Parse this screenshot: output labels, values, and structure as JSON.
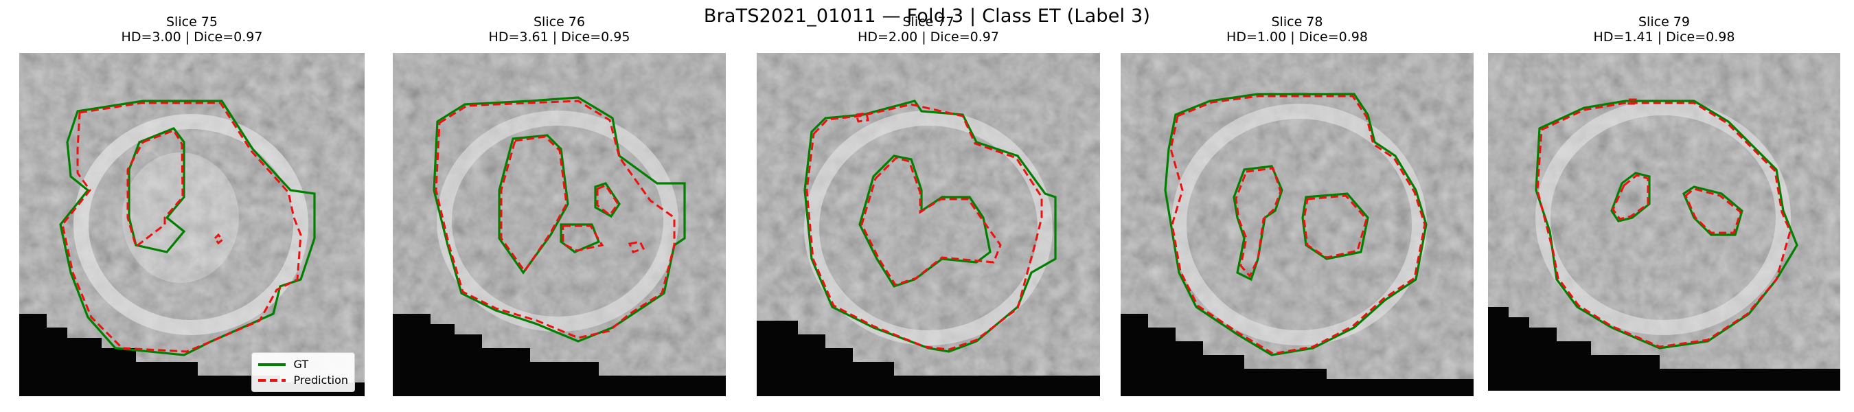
{
  "figure": {
    "suptitle": "BraTS2021_01011 — Fold 3 | Class ET (Label 3)"
  },
  "panels": [
    {
      "slice_label": "Slice 75",
      "metrics_label": "HD=3.00 | Dice=0.97",
      "hd": 3.0,
      "dice": 0.97
    },
    {
      "slice_label": "Slice 76",
      "metrics_label": "HD=3.61 | Dice=0.95",
      "hd": 3.61,
      "dice": 0.95
    },
    {
      "slice_label": "Slice 77",
      "metrics_label": "HD=2.00 | Dice=0.97",
      "hd": 2.0,
      "dice": 0.97
    },
    {
      "slice_label": "Slice 78",
      "metrics_label": "HD=1.00 | Dice=0.98",
      "hd": 1.0,
      "dice": 0.98
    },
    {
      "slice_label": "Slice 79",
      "metrics_label": "HD=1.41 | Dice=0.98",
      "hd": 1.41,
      "dice": 0.98
    }
  ],
  "legend": {
    "gt_label": "GT",
    "pred_label": "Prediction"
  },
  "colors": {
    "gt": "#008000",
    "prediction": "#ee1111",
    "background": "#ffffff"
  }
}
